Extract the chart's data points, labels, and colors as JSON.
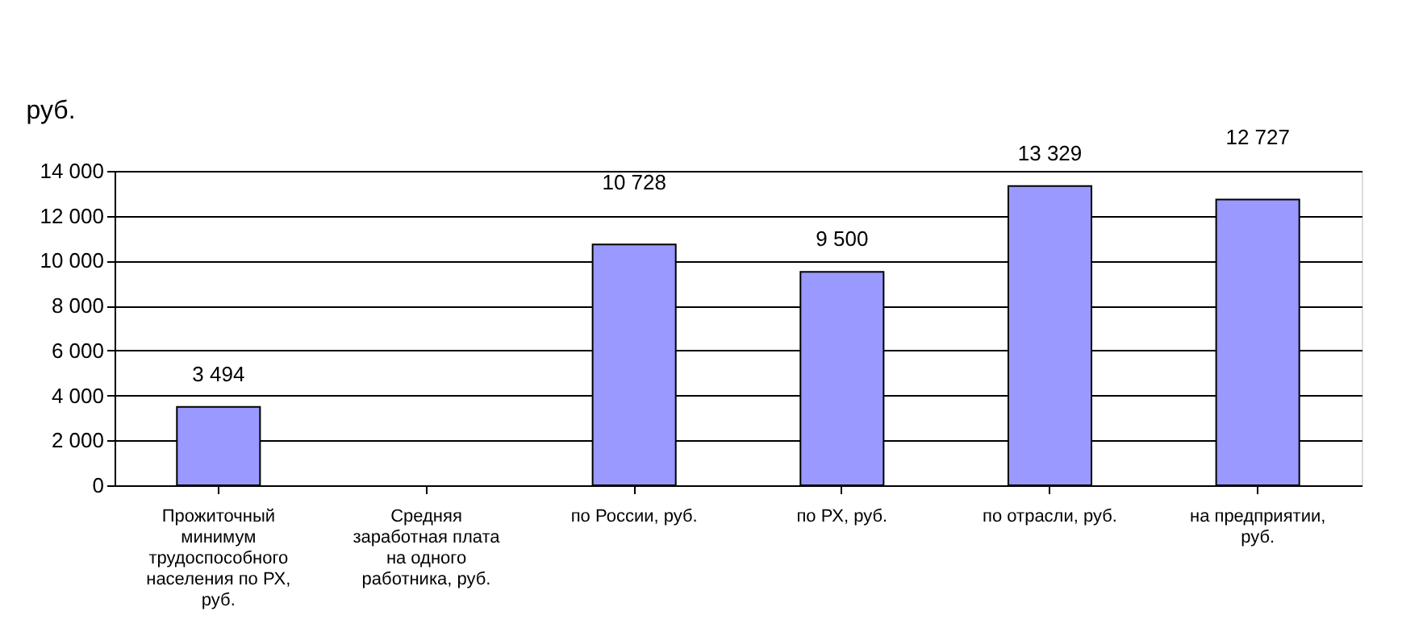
{
  "chart_data": {
    "type": "bar",
    "ylabel": "руб.",
    "categories": [
      "Прожиточный минимум трудоспособного населения по РХ, руб.",
      "Средняя заработная плата на одного работника, руб.",
      "по России, руб.",
      "по РХ, руб.",
      "по отрасли, руб.",
      "на предприятии, руб."
    ],
    "values": [
      3494,
      null,
      10728,
      9500,
      13329,
      12727
    ],
    "value_labels": [
      "3 494",
      null,
      "10 728",
      "9 500",
      "13 329",
      "12 727"
    ],
    "color": "#9999ff",
    "ylim": [
      0,
      14000
    ],
    "yticks": [
      {
        "value": 0,
        "label": "0"
      },
      {
        "value": 2000,
        "label": "2 000"
      },
      {
        "value": 4000,
        "label": "4 000"
      },
      {
        "value": 6000,
        "label": "6 000"
      },
      {
        "value": 8000,
        "label": "8 000"
      },
      {
        "value": 10000,
        "label": "10 000"
      },
      {
        "value": 12000,
        "label": "12 000"
      },
      {
        "value": 14000,
        "label": "14 000"
      }
    ],
    "grid": "y"
  }
}
